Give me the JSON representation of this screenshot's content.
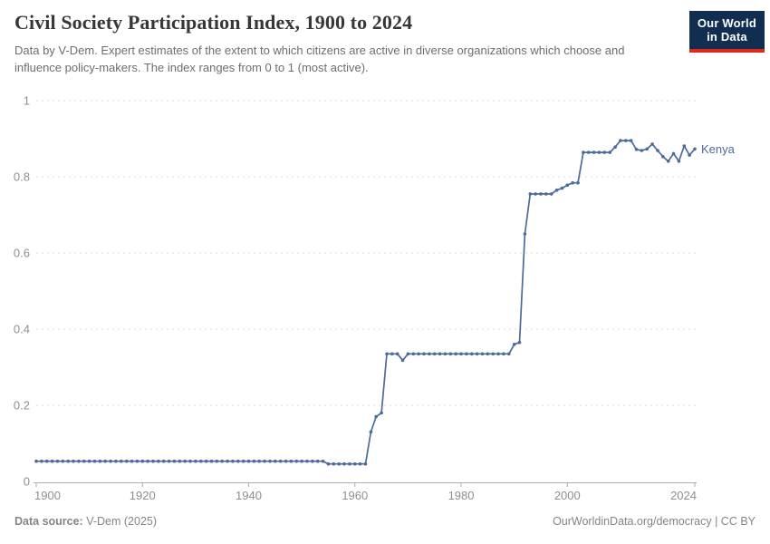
{
  "header": {
    "title": "Civil Society Participation Index, 1900 to 2024",
    "subtitle": "Data by V-Dem. Expert estimates of the extent to which citizens are active in diverse organizations which choose and influence policy-makers. The index ranges from 0 to 1 (most active).",
    "logo": {
      "line1": "Our World",
      "line2": "in Data"
    }
  },
  "footer": {
    "source_label": "Data source:",
    "source_value": " V-Dem (2025)",
    "credit": "OurWorldinData.org/democracy | CC BY"
  },
  "colors": {
    "series_line": "#4C6A9C",
    "series_label": "#4C6A9C",
    "gridline": "#dcdcdc",
    "axis_line": "#adadad",
    "axis_text": "#8f8f8f",
    "title_text": "#383636",
    "subtitle_text": "#6e6e6e",
    "footer_text": "#858585",
    "logo_bg": "#112e51",
    "logo_red": "#dc2a1c"
  },
  "chart_data": {
    "type": "line",
    "title": "Civil Society Participation Index, 1900 to 2024",
    "xlabel": "",
    "ylabel": "",
    "xlim": [
      1900,
      2024
    ],
    "ylim": [
      0,
      1
    ],
    "grid": "horizontal-dashed",
    "legend_position": "end-of-line-label",
    "x_ticks": [
      1900,
      1920,
      1940,
      1960,
      1980,
      2000,
      2024
    ],
    "y_ticks": [
      0,
      0.2,
      0.4,
      0.6,
      0.8,
      1
    ],
    "y_tick_labels": [
      "0",
      "0.2",
      "0.4",
      "0.6",
      "0.8",
      "1"
    ],
    "marker": "point-per-year",
    "series": [
      {
        "name": "Kenya",
        "points": [
          [
            1900,
            0.053
          ],
          [
            1901,
            0.053
          ],
          [
            1902,
            0.053
          ],
          [
            1903,
            0.053
          ],
          [
            1904,
            0.053
          ],
          [
            1905,
            0.053
          ],
          [
            1906,
            0.053
          ],
          [
            1907,
            0.053
          ],
          [
            1908,
            0.053
          ],
          [
            1909,
            0.053
          ],
          [
            1910,
            0.053
          ],
          [
            1911,
            0.053
          ],
          [
            1912,
            0.053
          ],
          [
            1913,
            0.053
          ],
          [
            1914,
            0.053
          ],
          [
            1915,
            0.053
          ],
          [
            1916,
            0.053
          ],
          [
            1917,
            0.053
          ],
          [
            1918,
            0.053
          ],
          [
            1919,
            0.053
          ],
          [
            1920,
            0.053
          ],
          [
            1921,
            0.053
          ],
          [
            1922,
            0.053
          ],
          [
            1923,
            0.053
          ],
          [
            1924,
            0.053
          ],
          [
            1925,
            0.053
          ],
          [
            1926,
            0.053
          ],
          [
            1927,
            0.053
          ],
          [
            1928,
            0.053
          ],
          [
            1929,
            0.053
          ],
          [
            1930,
            0.053
          ],
          [
            1931,
            0.053
          ],
          [
            1932,
            0.053
          ],
          [
            1933,
            0.053
          ],
          [
            1934,
            0.053
          ],
          [
            1935,
            0.053
          ],
          [
            1936,
            0.053
          ],
          [
            1937,
            0.053
          ],
          [
            1938,
            0.053
          ],
          [
            1939,
            0.053
          ],
          [
            1940,
            0.053
          ],
          [
            1941,
            0.053
          ],
          [
            1942,
            0.053
          ],
          [
            1943,
            0.053
          ],
          [
            1944,
            0.053
          ],
          [
            1945,
            0.053
          ],
          [
            1946,
            0.053
          ],
          [
            1947,
            0.053
          ],
          [
            1948,
            0.053
          ],
          [
            1949,
            0.053
          ],
          [
            1950,
            0.053
          ],
          [
            1951,
            0.053
          ],
          [
            1952,
            0.053
          ],
          [
            1953,
            0.053
          ],
          [
            1954,
            0.053
          ],
          [
            1955,
            0.046
          ],
          [
            1956,
            0.046
          ],
          [
            1957,
            0.046
          ],
          [
            1958,
            0.046
          ],
          [
            1959,
            0.046
          ],
          [
            1960,
            0.046
          ],
          [
            1961,
            0.046
          ],
          [
            1962,
            0.046
          ],
          [
            1963,
            0.13
          ],
          [
            1964,
            0.17
          ],
          [
            1965,
            0.18
          ],
          [
            1966,
            0.335
          ],
          [
            1967,
            0.335
          ],
          [
            1968,
            0.335
          ],
          [
            1969,
            0.318
          ],
          [
            1970,
            0.335
          ],
          [
            1971,
            0.335
          ],
          [
            1972,
            0.335
          ],
          [
            1973,
            0.335
          ],
          [
            1974,
            0.335
          ],
          [
            1975,
            0.335
          ],
          [
            1976,
            0.335
          ],
          [
            1977,
            0.335
          ],
          [
            1978,
            0.335
          ],
          [
            1979,
            0.335
          ],
          [
            1980,
            0.335
          ],
          [
            1981,
            0.335
          ],
          [
            1982,
            0.335
          ],
          [
            1983,
            0.335
          ],
          [
            1984,
            0.335
          ],
          [
            1985,
            0.335
          ],
          [
            1986,
            0.335
          ],
          [
            1987,
            0.335
          ],
          [
            1988,
            0.335
          ],
          [
            1989,
            0.335
          ],
          [
            1990,
            0.36
          ],
          [
            1991,
            0.365
          ],
          [
            1992,
            0.65
          ],
          [
            1993,
            0.755
          ],
          [
            1994,
            0.755
          ],
          [
            1995,
            0.755
          ],
          [
            1996,
            0.755
          ],
          [
            1997,
            0.755
          ],
          [
            1998,
            0.765
          ],
          [
            1999,
            0.77
          ],
          [
            2000,
            0.778
          ],
          [
            2001,
            0.784
          ],
          [
            2002,
            0.784
          ],
          [
            2003,
            0.864
          ],
          [
            2004,
            0.864
          ],
          [
            2005,
            0.864
          ],
          [
            2006,
            0.864
          ],
          [
            2007,
            0.864
          ],
          [
            2008,
            0.864
          ],
          [
            2009,
            0.878
          ],
          [
            2010,
            0.895
          ],
          [
            2011,
            0.895
          ],
          [
            2012,
            0.895
          ],
          [
            2013,
            0.872
          ],
          [
            2014,
            0.869
          ],
          [
            2015,
            0.873
          ],
          [
            2016,
            0.886
          ],
          [
            2017,
            0.869
          ],
          [
            2018,
            0.853
          ],
          [
            2019,
            0.841
          ],
          [
            2020,
            0.861
          ],
          [
            2021,
            0.841
          ],
          [
            2022,
            0.881
          ],
          [
            2023,
            0.857
          ],
          [
            2024,
            0.873
          ]
        ]
      }
    ]
  }
}
